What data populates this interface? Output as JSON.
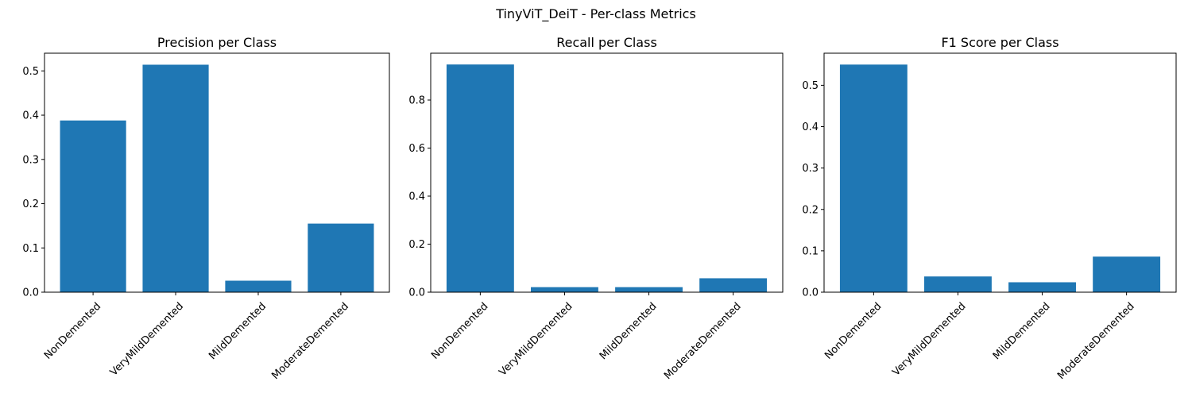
{
  "chart_data": {
    "suptitle": "TinyViT_DeiT - Per-class Metrics",
    "bar_color": "#1f77b4",
    "charts": [
      {
        "type": "bar",
        "title": "Precision per Class",
        "categories": [
          "NonDemented",
          "VeryMildDemented",
          "MildDemented",
          "ModerateDemented"
        ],
        "values": [
          0.388,
          0.514,
          0.026,
          0.155
        ],
        "ylim": [
          0,
          0.54
        ],
        "yticks": [
          0.0,
          0.1,
          0.2,
          0.3,
          0.4,
          0.5
        ],
        "ytick_labels": [
          "0.0",
          "0.1",
          "0.2",
          "0.3",
          "0.4",
          "0.5"
        ],
        "xlabel": "",
        "ylabel": ""
      },
      {
        "type": "bar",
        "title": "Recall per Class",
        "categories": [
          "NonDemented",
          "VeryMildDemented",
          "MildDemented",
          "ModerateDemented"
        ],
        "values": [
          0.948,
          0.021,
          0.021,
          0.058
        ],
        "ylim": [
          0,
          0.995
        ],
        "yticks": [
          0.0,
          0.2,
          0.4,
          0.6,
          0.8
        ],
        "ytick_labels": [
          "0.0",
          "0.2",
          "0.4",
          "0.6",
          "0.8"
        ],
        "xlabel": "",
        "ylabel": ""
      },
      {
        "type": "bar",
        "title": "F1 Score per Class",
        "categories": [
          "NonDemented",
          "VeryMildDemented",
          "MildDemented",
          "ModerateDemented"
        ],
        "values": [
          0.55,
          0.038,
          0.024,
          0.086
        ],
        "ylim": [
          0,
          0.5775
        ],
        "yticks": [
          0.0,
          0.1,
          0.2,
          0.3,
          0.4,
          0.5
        ],
        "ytick_labels": [
          "0.0",
          "0.1",
          "0.2",
          "0.3",
          "0.4",
          "0.5"
        ],
        "xlabel": "",
        "ylabel": ""
      }
    ]
  }
}
